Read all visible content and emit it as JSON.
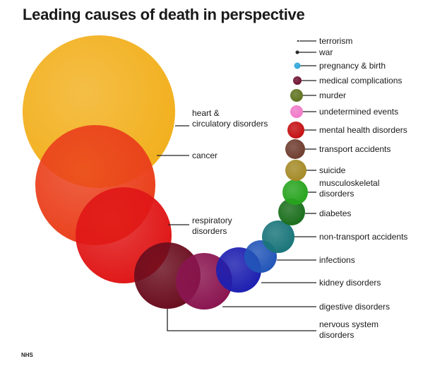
{
  "title": "Leading causes of death in perspective",
  "source": "NHS",
  "causes": [
    {
      "label": "heart & circulatory disorders",
      "color": "#f2b01e"
    },
    {
      "label": "cancer",
      "color": "#ea401c"
    },
    {
      "label": "respiratory disorders",
      "color": "#e01717"
    },
    {
      "label": "nervous system disorders",
      "color": "#6a0d1e"
    },
    {
      "label": "digestive disorders",
      "color": "#8a1550"
    },
    {
      "label": "kidney disorders",
      "color": "#1d1fb0"
    },
    {
      "label": "infections",
      "color": "#2255b8"
    },
    {
      "label": "non-transport accidents",
      "color": "#19757a"
    },
    {
      "label": "diabetes",
      "color": "#1a6e1c"
    },
    {
      "label": "musculoskeletal disorders",
      "color": "#27a41e"
    },
    {
      "label": "suicide",
      "color": "#a48a26"
    },
    {
      "label": "transport accidents",
      "color": "#6e3c2e"
    },
    {
      "label": "mental health disorders",
      "color": "#c40f12"
    },
    {
      "label": "undetermined events",
      "color": "#f079c8"
    },
    {
      "label": "murder",
      "color": "#5e721e"
    },
    {
      "label": "medical complications",
      "color": "#6c1030"
    },
    {
      "label": "pregnancy & birth",
      "color": "#2aa4d8"
    },
    {
      "label": "war",
      "color": "#111111"
    },
    {
      "label": "terrorism",
      "color": "#111111"
    }
  ]
}
